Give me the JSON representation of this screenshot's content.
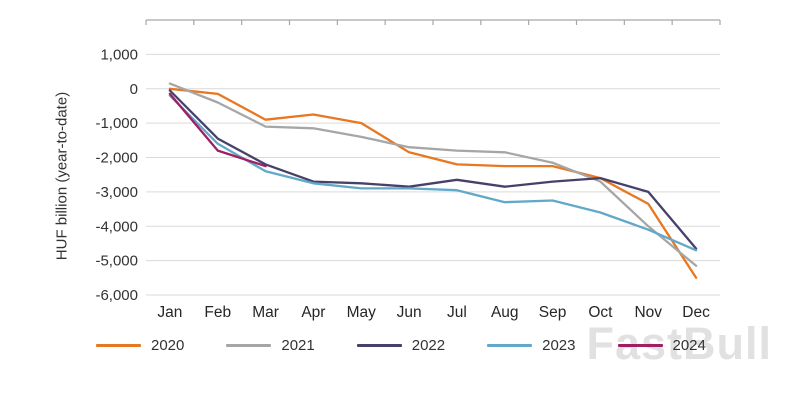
{
  "chart_data": {
    "type": "line",
    "title": "",
    "ylabel": "HUF billion (year-to-date)",
    "categories": [
      "Jan",
      "Feb",
      "Mar",
      "Apr",
      "May",
      "Jun",
      "Jul",
      "Aug",
      "Sep",
      "Oct",
      "Nov",
      "Dec"
    ],
    "y_ticks": {
      "values": [
        1000,
        0,
        -1000,
        -2000,
        -3000,
        -4000,
        -5000,
        -6000
      ],
      "labels": [
        "1,000",
        "0",
        "-1,000",
        "-2,000",
        "-3,000",
        "-4,000",
        "-5,000",
        "-6,000"
      ]
    },
    "ylim": [
      -6000,
      2000
    ],
    "grid": "horizontal",
    "legend_position": "bottom",
    "series": [
      {
        "name": "2020",
        "color": "#E87722",
        "values": [
          0,
          -150,
          -900,
          -750,
          -1000,
          -1850,
          -2200,
          -2250,
          -2250,
          -2600,
          -3350,
          -5500
        ]
      },
      {
        "name": "2021",
        "color": "#A6A6A6",
        "values": [
          150,
          -400,
          -1100,
          -1150,
          -1400,
          -1700,
          -1800,
          -1850,
          -2150,
          -2700,
          -4000,
          -5150
        ]
      },
      {
        "name": "2022",
        "color": "#46406B",
        "values": [
          -50,
          -1450,
          -2200,
          -2700,
          -2750,
          -2850,
          -2650,
          -2850,
          -2700,
          -2600,
          -3000,
          -4650
        ]
      },
      {
        "name": "2023",
        "color": "#62A8C9",
        "values": [
          -200,
          -1600,
          -2400,
          -2750,
          -2900,
          -2900,
          -2950,
          -3300,
          -3250,
          -3600,
          -4100,
          -4700
        ]
      },
      {
        "name": "2024",
        "color": "#9E1F63",
        "values": [
          -150,
          -1800,
          -2250,
          null,
          null,
          null,
          null,
          null,
          null,
          null,
          null,
          null
        ]
      }
    ]
  },
  "watermark": "FastBull"
}
